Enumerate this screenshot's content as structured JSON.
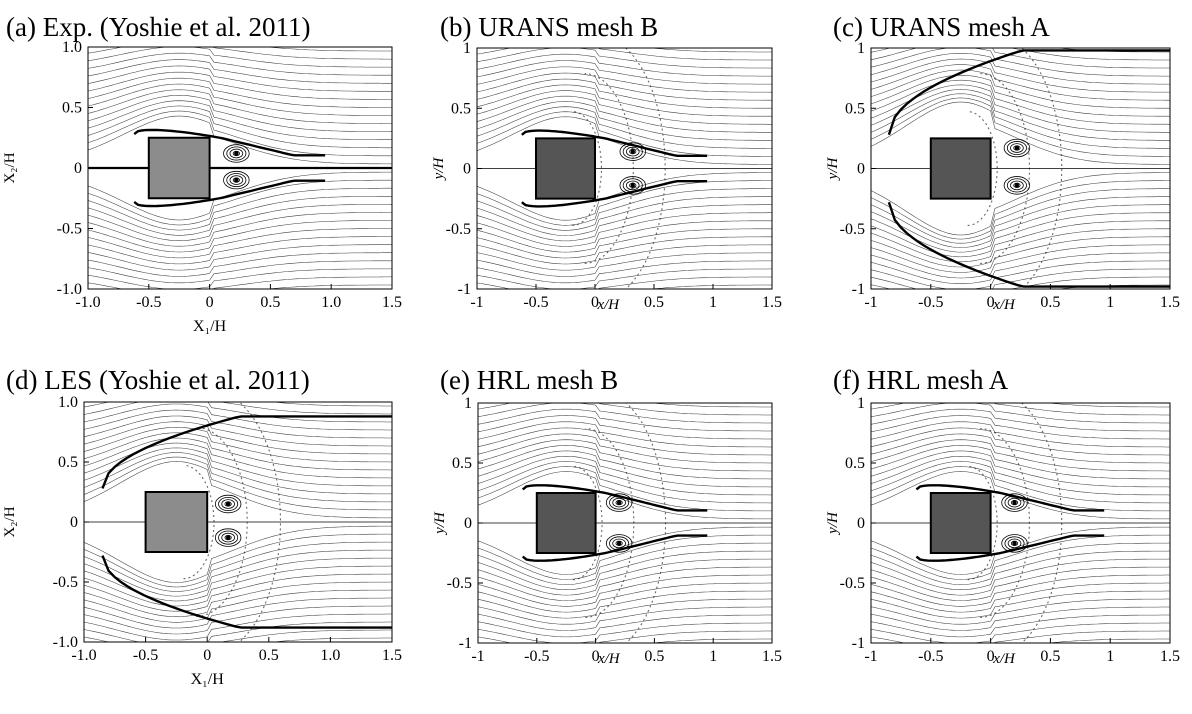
{
  "figure": {
    "colors": {
      "streamline": "#000000",
      "building_light": "#8c8c8c",
      "building_dark": "#555555",
      "background": "#ffffff"
    }
  },
  "chart_data": [
    {
      "id": "a",
      "type": "streamline",
      "title": "(a) Exp. (Yoshie et al. 2011)",
      "xlabel": "X₁/H",
      "ylabel": "X₂/H",
      "xlim": [
        -1.0,
        1.5
      ],
      "ylim": [
        -1.0,
        1.0
      ],
      "xticks": [
        "-1.0",
        "-0.5",
        "0",
        "0.5",
        "1.0",
        "1.5"
      ],
      "xtick_values": [
        -1.0,
        -0.5,
        0,
        0.5,
        1.0,
        1.5
      ],
      "yticks": [
        "1.0",
        "0.5",
        "0",
        "-0.5",
        "-1.0"
      ],
      "ytick_values": [
        1.0,
        0.5,
        0,
        -0.5,
        -1.0
      ],
      "building": {
        "x": [
          -0.5,
          0
        ],
        "y": [
          -0.25,
          0.25
        ],
        "color": "#8c8c8c"
      },
      "vortices": [
        [
          0.22,
          0.12
        ],
        [
          0.22,
          -0.1
        ]
      ],
      "style": "exp"
    },
    {
      "id": "b",
      "type": "streamline",
      "title": "(b) URANS mesh B",
      "xlabel": "x/H",
      "ylabel": "y/H",
      "xlim": [
        -1,
        1.5
      ],
      "ylim": [
        -1,
        1
      ],
      "xticks": [
        "-1",
        "-0.5",
        "0",
        "0.5",
        "1",
        "1.5"
      ],
      "xtick_values": [
        -1,
        -0.5,
        0,
        0.5,
        1,
        1.5
      ],
      "yticks": [
        "1",
        "0.5",
        "0",
        "-0.5",
        "-1"
      ],
      "ytick_values": [
        1,
        0.5,
        0,
        -0.5,
        -1
      ],
      "building": {
        "x": [
          -0.5,
          0
        ],
        "y": [
          -0.25,
          0.25
        ],
        "color": "#555555"
      },
      "vortices": [
        [
          0.32,
          0.14
        ],
        [
          0.32,
          -0.14
        ]
      ],
      "style": "sim"
    },
    {
      "id": "c",
      "type": "streamline",
      "title": "(c) URANS mesh A",
      "xlabel": "x/H",
      "ylabel": "y/H",
      "xlim": [
        -1,
        1.5
      ],
      "ylim": [
        -1,
        1
      ],
      "xticks": [
        "-1",
        "-0.5",
        "0",
        "0.5",
        "1",
        "1.5"
      ],
      "xtick_values": [
        -1,
        -0.5,
        0,
        0.5,
        1,
        1.5
      ],
      "yticks": [
        "1",
        "0.5",
        "0",
        "-0.5",
        "-1"
      ],
      "ytick_values": [
        1,
        0.5,
        0,
        -0.5,
        -1
      ],
      "building": {
        "x": [
          -0.5,
          0
        ],
        "y": [
          -0.25,
          0.25
        ],
        "color": "#555555"
      },
      "vortices": [
        [
          0.22,
          0.17
        ],
        [
          0.22,
          -0.14
        ]
      ],
      "style": "wide"
    },
    {
      "id": "d",
      "type": "streamline",
      "title": "(d) LES (Yoshie et al. 2011)",
      "xlabel": "X₁/H",
      "ylabel": "X₂/H",
      "xlim": [
        -1.0,
        1.5
      ],
      "ylim": [
        -1.0,
        1.0
      ],
      "xticks": [
        "-1.0",
        "-0.5",
        "0",
        "0.5",
        "1.0",
        "1.5"
      ],
      "xtick_values": [
        -1.0,
        -0.5,
        0,
        0.5,
        1.0,
        1.5
      ],
      "yticks": [
        "1.0",
        "0.5",
        "0",
        "-0.5",
        "-1.0"
      ],
      "ytick_values": [
        1.0,
        0.5,
        0,
        -0.5,
        -1.0
      ],
      "building": {
        "x": [
          -0.5,
          0
        ],
        "y": [
          -0.25,
          0.25
        ],
        "color": "#8c8c8c"
      },
      "vortices": [
        [
          0.17,
          0.15
        ],
        [
          0.17,
          -0.13
        ]
      ],
      "style": "les"
    },
    {
      "id": "e",
      "type": "streamline",
      "title": "(e) HRL mesh B",
      "xlabel": "x/H",
      "ylabel": "y/H",
      "xlim": [
        -1,
        1.5
      ],
      "ylim": [
        -1,
        1
      ],
      "xticks": [
        "-1",
        "-0.5",
        "0",
        "0.5",
        "1",
        "1.5"
      ],
      "xtick_values": [
        -1,
        -0.5,
        0,
        0.5,
        1,
        1.5
      ],
      "yticks": [
        "1",
        "0.5",
        "0",
        "-0.5",
        "-1"
      ],
      "ytick_values": [
        1,
        0.5,
        0,
        -0.5,
        -1
      ],
      "building": {
        "x": [
          -0.5,
          0
        ],
        "y": [
          -0.25,
          0.25
        ],
        "color": "#555555"
      },
      "vortices": [
        [
          0.2,
          0.17
        ],
        [
          0.2,
          -0.17
        ]
      ],
      "style": "hrl"
    },
    {
      "id": "f",
      "type": "streamline",
      "title": "(f) HRL mesh A",
      "xlabel": "x/H",
      "ylabel": "y/H",
      "xlim": [
        -1,
        1.5
      ],
      "ylim": [
        -1,
        1
      ],
      "xticks": [
        "-1",
        "-0.5",
        "0",
        "0.5",
        "1",
        "1.5"
      ],
      "xtick_values": [
        -1,
        -0.5,
        0,
        0.5,
        1,
        1.5
      ],
      "yticks": [
        "1",
        "0.5",
        "0",
        "-0.5",
        "-1"
      ],
      "ytick_values": [
        1,
        0.5,
        0,
        -0.5,
        -1
      ],
      "building": {
        "x": [
          -0.5,
          0
        ],
        "y": [
          -0.25,
          0.25
        ],
        "color": "#555555"
      },
      "vortices": [
        [
          0.2,
          0.17
        ],
        [
          0.2,
          -0.17
        ]
      ],
      "style": "hrl"
    }
  ]
}
